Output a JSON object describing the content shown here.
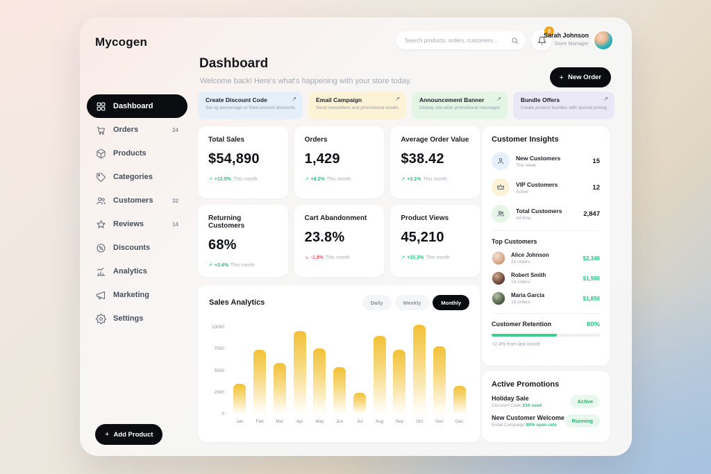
{
  "brand": "Mycogen",
  "colors": {
    "accent_black": "#0b0c10",
    "positive_green": "#27c281",
    "negative_red": "#f25d5d",
    "bar_yellow": "#f3c138",
    "notification_orange": "#f0a81c"
  },
  "header": {
    "search_placeholder": "Search products, orders, customers...",
    "notification_count": "3",
    "user_name": "Sarah Johnson",
    "user_role": "Store Manager",
    "new_order_label": "New Order",
    "plus": "+"
  },
  "page": {
    "title": "Dashboard",
    "subtitle": "Welcome back! Here's what's happening with your store today."
  },
  "sidebar": {
    "items": [
      {
        "label": "Dashboard",
        "badge": ""
      },
      {
        "label": "Orders",
        "badge": "24"
      },
      {
        "label": "Products",
        "badge": ""
      },
      {
        "label": "Categories",
        "badge": ""
      },
      {
        "label": "Customers",
        "badge": "32"
      },
      {
        "label": "Reviews",
        "badge": "14"
      },
      {
        "label": "Discounts",
        "badge": ""
      },
      {
        "label": "Analytics",
        "badge": ""
      },
      {
        "label": "Marketing",
        "badge": ""
      },
      {
        "label": "Settings",
        "badge": ""
      }
    ],
    "add_product_label": "Add Product"
  },
  "quick_actions": [
    {
      "title": "Create Discount Code",
      "subtitle": "Set up percentage or fixed amount discounts",
      "bg": "#e4effa",
      "arrow": "↗"
    },
    {
      "title": "Email Campaign",
      "subtitle": "Send newsletters and promotional emails",
      "bg": "#fcf3d7",
      "arrow": "↗"
    },
    {
      "title": "Announcement Banner",
      "subtitle": "Display site-wide promotional messages",
      "bg": "#e3f6e6",
      "arrow": "↗"
    },
    {
      "title": "Bundle Offers",
      "subtitle": "Create product bundles with special pricing",
      "bg": "#eae7f7",
      "arrow": "↗"
    }
  ],
  "stats": [
    {
      "label": "Total Sales",
      "value": "$54,890",
      "arrow": "↗",
      "delta": "+12.5%",
      "period": "This month",
      "trend": "up"
    },
    {
      "label": "Orders",
      "value": "1,429",
      "arrow": "↗",
      "delta": "+8.2%",
      "period": "This month",
      "trend": "up"
    },
    {
      "label": "Average Order Value",
      "value": "$38.42",
      "arrow": "↗",
      "delta": "+3.1%",
      "period": "This month",
      "trend": "up"
    },
    {
      "label": "Returning Customers",
      "value": "68%",
      "arrow": "↗",
      "delta": "+2.4%",
      "period": "This month",
      "trend": "up"
    },
    {
      "label": "Cart Abandonment",
      "value": "23.8%",
      "arrow": "↘",
      "delta": "-1.8%",
      "period": "This month",
      "trend": "down"
    },
    {
      "label": "Product Views",
      "value": "45,210",
      "arrow": "↗",
      "delta": "+15.3%",
      "period": "This month",
      "trend": "up"
    }
  ],
  "sales_analytics": {
    "title": "Sales Analytics",
    "range_options": [
      {
        "label": "Daily",
        "active": false
      },
      {
        "label": "Weekly",
        "active": false
      },
      {
        "label": "Monthly",
        "active": true
      }
    ]
  },
  "chart_data": {
    "type": "bar",
    "title": "Sales Analytics",
    "categories": [
      "Jan",
      "Feb",
      "Mar",
      "Apr",
      "May",
      "Jun",
      "Jul",
      "Aug",
      "Sep",
      "Oct",
      "Nov",
      "Dec"
    ],
    "values": [
      3500,
      7400,
      5900,
      9600,
      7600,
      5400,
      2500,
      9000,
      7400,
      10300,
      7800,
      3300
    ],
    "yticks": [
      0,
      2500,
      5000,
      7500,
      10000
    ],
    "ylim": [
      0,
      10700
    ],
    "xlabel": "",
    "ylabel": "",
    "grid": false,
    "legend": "none",
    "bar_color_top": "#f3c138"
  },
  "customer_insights": {
    "title": "Customer Insights",
    "metrics": [
      {
        "label": "New Customers",
        "sub": "This week",
        "value": "15",
        "icon_bg": "#e6f0fb"
      },
      {
        "label": "VIP Customers",
        "sub": "Active",
        "value": "12",
        "icon_bg": "#fcf3d7"
      },
      {
        "label": "Total Customers",
        "sub": "All time",
        "value": "2,847",
        "icon_bg": "#e5f6e9"
      }
    ],
    "top_customers": {
      "title": "Top Customers",
      "rows": [
        {
          "name": "Alice Johnson",
          "orders": "23 orders",
          "amount": "$2,340"
        },
        {
          "name": "Robert Smith",
          "orders": "18 orders",
          "amount": "$1,980"
        },
        {
          "name": "Maria Garcia",
          "orders": "15 orders",
          "amount": "$1,850"
        }
      ]
    },
    "retention": {
      "label": "Customer Retention",
      "value": "60%",
      "percent": 60,
      "note": "+2.4% from last month"
    }
  },
  "active_promotions": {
    "title": "Active Promotions",
    "rows": [
      {
        "name": "Holiday Sale",
        "meta_label": "Discount Code",
        "meta_value": "234 used",
        "status": "Active"
      },
      {
        "name": "New Customer Welcome",
        "meta_label": "Email Campaign",
        "meta_value": "89% open rate",
        "status": "Running"
      }
    ]
  }
}
